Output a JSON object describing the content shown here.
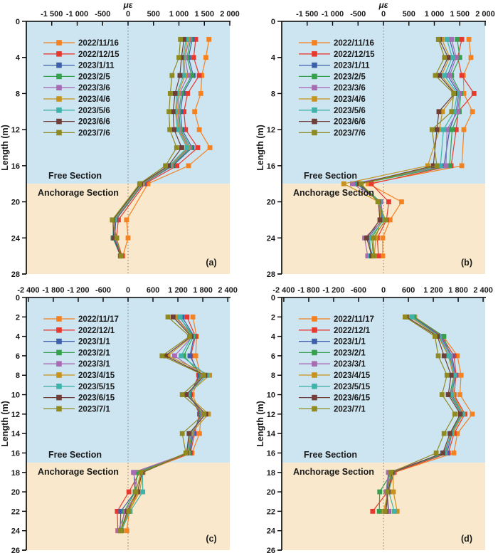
{
  "figure": {
    "ylabel": "Length (m)",
    "x_title": "με",
    "text_color": "#1a1a1a",
    "axis_color": "#000000",
    "zero_line_color": "#7a7a7a",
    "free_section_color": "#cde4f1",
    "anchorage_section_color": "#f9e8cb"
  },
  "chart_data": [
    {
      "id": "a",
      "panel_label": "(a)",
      "type": "line",
      "x_title": "με",
      "ylabel": "Length (m)",
      "xlim": [
        -2000,
        2000
      ],
      "x_ticks": [
        -1500,
        -1000,
        -500,
        0,
        500,
        1000,
        1500,
        2000
      ],
      "x_tick_labels": [
        "-1 500",
        "-1 000",
        "-500",
        "0",
        "500",
        "1 000",
        "1 500",
        "2 000"
      ],
      "ylim": [
        0,
        28
      ],
      "y_ticks": [
        0,
        4,
        8,
        12,
        16,
        20,
        24,
        28
      ],
      "zero_line": true,
      "regions": [
        {
          "label": "Free Section",
          "from": 0,
          "to": 18,
          "color": "#cde4f1"
        },
        {
          "label": "Anchorage Section",
          "from": 18,
          "to": 28,
          "color": "#f9e8cb"
        }
      ],
      "depths_m": [
        2,
        4,
        6,
        8,
        10,
        12,
        14,
        16,
        18,
        22,
        24,
        26
      ],
      "series": [
        {
          "name": "2022/11/16",
          "color": "#f58220",
          "values": [
            1590,
            1530,
            1450,
            1430,
            1310,
            1400,
            1610,
            1190,
            390,
            -30,
            0,
            -100
          ]
        },
        {
          "name": "2022/12/15",
          "color": "#e8392e",
          "values": [
            1330,
            1290,
            1400,
            1170,
            1100,
            1130,
            1370,
            960,
            330,
            -190,
            -230,
            -120
          ]
        },
        {
          "name": "2023/1/11",
          "color": "#3e5fa9",
          "values": [
            1260,
            1190,
            1280,
            1080,
            1030,
            1060,
            1260,
            880,
            300,
            -240,
            -260,
            -130
          ]
        },
        {
          "name": "2023/2/5",
          "color": "#36a04e",
          "values": [
            1230,
            1160,
            1250,
            1050,
            1000,
            1030,
            1230,
            860,
            290,
            -255,
            -285,
            -135
          ]
        },
        {
          "name": "2023/3/6",
          "color": "#a76bb2",
          "values": [
            1200,
            1120,
            1180,
            1010,
            975,
            1010,
            1200,
            840,
            280,
            -265,
            -280,
            -140
          ]
        },
        {
          "name": "2023/4/6",
          "color": "#c8921e",
          "values": [
            1170,
            1100,
            1120,
            985,
            950,
            990,
            1180,
            825,
            270,
            -275,
            -292,
            -148
          ]
        },
        {
          "name": "2023/5/6",
          "color": "#3fb3a9",
          "values": [
            1140,
            1080,
            1090,
            962,
            930,
            970,
            1160,
            812,
            258,
            -285,
            -298,
            -150
          ]
        },
        {
          "name": "2023/6/6",
          "color": "#6e4038",
          "values": [
            1100,
            1050,
            1020,
            925,
            885,
            905,
            1055,
            795,
            245,
            -298,
            -282,
            -150
          ]
        },
        {
          "name": "2023/7/6",
          "color": "#8f8b21",
          "values": [
            1030,
            1000,
            865,
            830,
            805,
            820,
            955,
            735,
            228,
            -310,
            -222,
            -142
          ]
        }
      ]
    },
    {
      "id": "b",
      "panel_label": "(b)",
      "type": "line",
      "x_title": "με",
      "ylabel": "Length (m)",
      "xlim": [
        -2000,
        2000
      ],
      "x_ticks": [
        -1500,
        -1000,
        -500,
        0,
        500,
        1000,
        1500,
        2000
      ],
      "x_tick_labels": [
        "-1 500",
        "-1 000",
        "-500",
        "0",
        "500",
        "1 000",
        "1 500",
        "2 000"
      ],
      "ylim": [
        0,
        28
      ],
      "y_ticks": [
        0,
        4,
        8,
        12,
        16,
        20,
        24,
        28
      ],
      "zero_line": true,
      "regions": [
        {
          "label": "Free Section",
          "from": 0,
          "to": 18,
          "color": "#cde4f1"
        },
        {
          "label": "Anchorage Section",
          "from": 18,
          "to": 28,
          "color": "#f9e8cb"
        }
      ],
      "depths_m": [
        2,
        4,
        6,
        8,
        10,
        12,
        16,
        18,
        20,
        22,
        24,
        26
      ],
      "series": [
        {
          "name": "2022/11/16",
          "color": "#f58220",
          "values": [
            1680,
            1720,
            1570,
            1580,
            1750,
            1580,
            1540,
            -300,
            356,
            130,
            -15,
            -15
          ]
        },
        {
          "name": "2022/12/15",
          "color": "#e8392e",
          "values": [
            1540,
            1460,
            1540,
            1780,
            1470,
            1430,
            1330,
            -240,
            104,
            60,
            -120,
            -100
          ]
        },
        {
          "name": "2023/1/11",
          "color": "#3e5fa9",
          "values": [
            1300,
            1400,
            1260,
            1480,
            1430,
            1300,
            1190,
            -530,
            -70,
            -30,
            -300,
            -220
          ]
        },
        {
          "name": "2023/2/5",
          "color": "#36a04e",
          "values": [
            1450,
            1500,
            1340,
            1520,
            1490,
            1350,
            1300,
            -460,
            -60,
            -10,
            -230,
            -200
          ]
        },
        {
          "name": "2023/3/6",
          "color": "#a76bb2",
          "values": [
            1340,
            1430,
            1300,
            1500,
            1460,
            1250,
            1230,
            -610,
            -50,
            0,
            -370,
            -310
          ]
        },
        {
          "name": "2023/4/6",
          "color": "#c8921e",
          "values": [
            1150,
            1300,
            1140,
            1420,
            1160,
            1100,
            870,
            -780,
            -90,
            -50,
            -150,
            -180
          ]
        },
        {
          "name": "2023/5/6",
          "color": "#3fb3a9",
          "values": [
            1250,
            1350,
            1200,
            1450,
            1390,
            1180,
            1120,
            -500,
            -80,
            10,
            -270,
            -250
          ]
        },
        {
          "name": "2023/6/6",
          "color": "#6e4038",
          "values": [
            1100,
            1270,
            1100,
            1400,
            1090,
            1050,
            980,
            -480,
            -100,
            -70,
            -330,
            -230
          ]
        },
        {
          "name": "2023/7/6",
          "color": "#8f8b21",
          "values": [
            1080,
            1200,
            1020,
            1380,
            1340,
            955,
            1050,
            -440,
            -110,
            40,
            -200,
            -190
          ]
        }
      ]
    },
    {
      "id": "c",
      "panel_label": "(c)",
      "type": "line",
      "x_title": "",
      "ylabel": "Length (m)",
      "xlim": [
        -2450,
        2450
      ],
      "x_ticks": [
        -2400,
        -1800,
        -1200,
        -600,
        0,
        600,
        1200,
        1800,
        2400
      ],
      "x_tick_labels": [
        "-2 400",
        "-1 800",
        "-1 200",
        "-600",
        "0",
        "600",
        "1 200",
        "1 800",
        "2 400"
      ],
      "ylim": [
        0,
        26
      ],
      "y_ticks": [
        0,
        2,
        4,
        6,
        8,
        10,
        12,
        14,
        16,
        18,
        20,
        22,
        24,
        26
      ],
      "zero_line": true,
      "regions": [
        {
          "label": "Free Section",
          "from": 0,
          "to": 17,
          "color": "#cde4f1"
        },
        {
          "label": "Anchorage Section",
          "from": 17,
          "to": 26,
          "color": "#f9e8cb"
        }
      ],
      "depths_m": [
        2,
        4,
        6,
        8,
        10,
        12,
        14,
        16,
        18,
        20,
        22,
        24
      ],
      "series": [
        {
          "name": "2022/11/17",
          "color": "#f58220",
          "values": [
            1560,
            1650,
            1630,
            1750,
            1545,
            1760,
            1720,
            1540,
            310,
            240,
            30,
            -30
          ]
        },
        {
          "name": "2022/12/1",
          "color": "#e8392e",
          "values": [
            1420,
            1620,
            1510,
            1700,
            1500,
            1720,
            1600,
            1505,
            280,
            20,
            -260,
            -245
          ]
        },
        {
          "name": "2023/1/1",
          "color": "#3e5fa9",
          "values": [
            1300,
            1590,
            1490,
            1730,
            1480,
            1745,
            1570,
            1485,
            140,
            170,
            -175,
            -190
          ]
        },
        {
          "name": "2023/2/1",
          "color": "#36a04e",
          "values": [
            1240,
            1575,
            1340,
            1775,
            1460,
            1775,
            1550,
            1465,
            230,
            170,
            -90,
            -170
          ]
        },
        {
          "name": "2023/3/1",
          "color": "#a76bb2",
          "values": [
            1160,
            1555,
            1120,
            1800,
            1440,
            1800,
            1530,
            1445,
            130,
            220,
            -60,
            -240
          ]
        },
        {
          "name": "2023/4/15",
          "color": "#c8921e",
          "values": [
            1130,
            1545,
            960,
            1965,
            1420,
            1935,
            1510,
            1430,
            360,
            280,
            20,
            -150
          ]
        },
        {
          "name": "2023/5/15",
          "color": "#3fb3a9",
          "values": [
            1255,
            1535,
            1280,
            1900,
            1430,
            1855,
            1490,
            1420,
            350,
            355,
            50,
            -160
          ]
        },
        {
          "name": "2023/6/15",
          "color": "#6e4038",
          "values": [
            1085,
            1520,
            900,
            1850,
            1400,
            1870,
            1470,
            1408,
            340,
            230,
            -20,
            -172
          ]
        },
        {
          "name": "2023/7/1",
          "color": "#8f8b21",
          "values": [
            960,
            1480,
            820,
            1820,
            1305,
            1830,
            1305,
            1392,
            310,
            190,
            15,
            -180
          ]
        }
      ]
    },
    {
      "id": "d",
      "panel_label": "(d)",
      "type": "line",
      "x_title": "",
      "ylabel": "Length (m)",
      "xlim": [
        -2450,
        2450
      ],
      "x_ticks": [
        -2400,
        -1800,
        -1200,
        -600,
        0,
        600,
        1200,
        1800,
        2400
      ],
      "x_tick_labels": [
        "-2 400",
        "-1 800",
        "-1 200",
        "-600",
        "0",
        "600",
        "1 200",
        "1 800",
        "2 400"
      ],
      "ylim": [
        0,
        26
      ],
      "y_ticks": [
        0,
        2,
        4,
        6,
        8,
        10,
        12,
        14,
        16,
        18,
        20,
        22,
        24,
        26
      ],
      "zero_line": true,
      "regions": [
        {
          "label": "Free Section",
          "from": 0,
          "to": 17,
          "color": "#cde4f1"
        },
        {
          "label": "Anchorage Section",
          "from": 17,
          "to": 26,
          "color": "#f9e8cb"
        }
      ],
      "depths_m": [
        2,
        4,
        6,
        8,
        10,
        12,
        14,
        16,
        18,
        20,
        22
      ],
      "series": [
        {
          "name": "2022/11/17",
          "color": "#f58220",
          "values": [
            755,
            1440,
            1780,
            1870,
            1840,
            2140,
            1780,
            1695,
            260,
            120,
            0
          ]
        },
        {
          "name": "2022/12/1",
          "color": "#e8392e",
          "values": [
            720,
            1400,
            1700,
            1750,
            1700,
            1960,
            1700,
            1560,
            255,
            100,
            -260
          ]
        },
        {
          "name": "2023/1/1",
          "color": "#3e5fa9",
          "values": [
            700,
            1380,
            1650,
            1730,
            1650,
            1905,
            1650,
            1530,
            140,
            80,
            130
          ]
        },
        {
          "name": "2023/2/1",
          "color": "#36a04e",
          "values": [
            730,
            1455,
            1600,
            1700,
            1600,
            1880,
            1620,
            1500,
            200,
            -90,
            -100
          ]
        },
        {
          "name": "2023/3/1",
          "color": "#a76bb2",
          "values": [
            680,
            1350,
            1620,
            1720,
            1620,
            1890,
            1640,
            1480,
            120,
            60,
            120
          ]
        },
        {
          "name": "2023/4/15",
          "color": "#c8921e",
          "values": [
            640,
            1320,
            1560,
            1680,
            1680,
            1920,
            1660,
            1440,
            230,
            240,
            330
          ]
        },
        {
          "name": "2023/5/15",
          "color": "#3fb3a9",
          "values": [
            690,
            1340,
            1580,
            1710,
            1640,
            1900,
            1630,
            1460,
            220,
            130,
            260
          ]
        },
        {
          "name": "2023/6/15",
          "color": "#6e4038",
          "values": [
            550,
            1300,
            1460,
            1630,
            1560,
            1850,
            1600,
            1430,
            210,
            110,
            60
          ]
        },
        {
          "name": "2023/7/1",
          "color": "#8f8b21",
          "values": [
            520,
            1240,
            1320,
            1530,
            1410,
            1720,
            1460,
            1270,
            180,
            90,
            40
          ]
        }
      ]
    }
  ]
}
